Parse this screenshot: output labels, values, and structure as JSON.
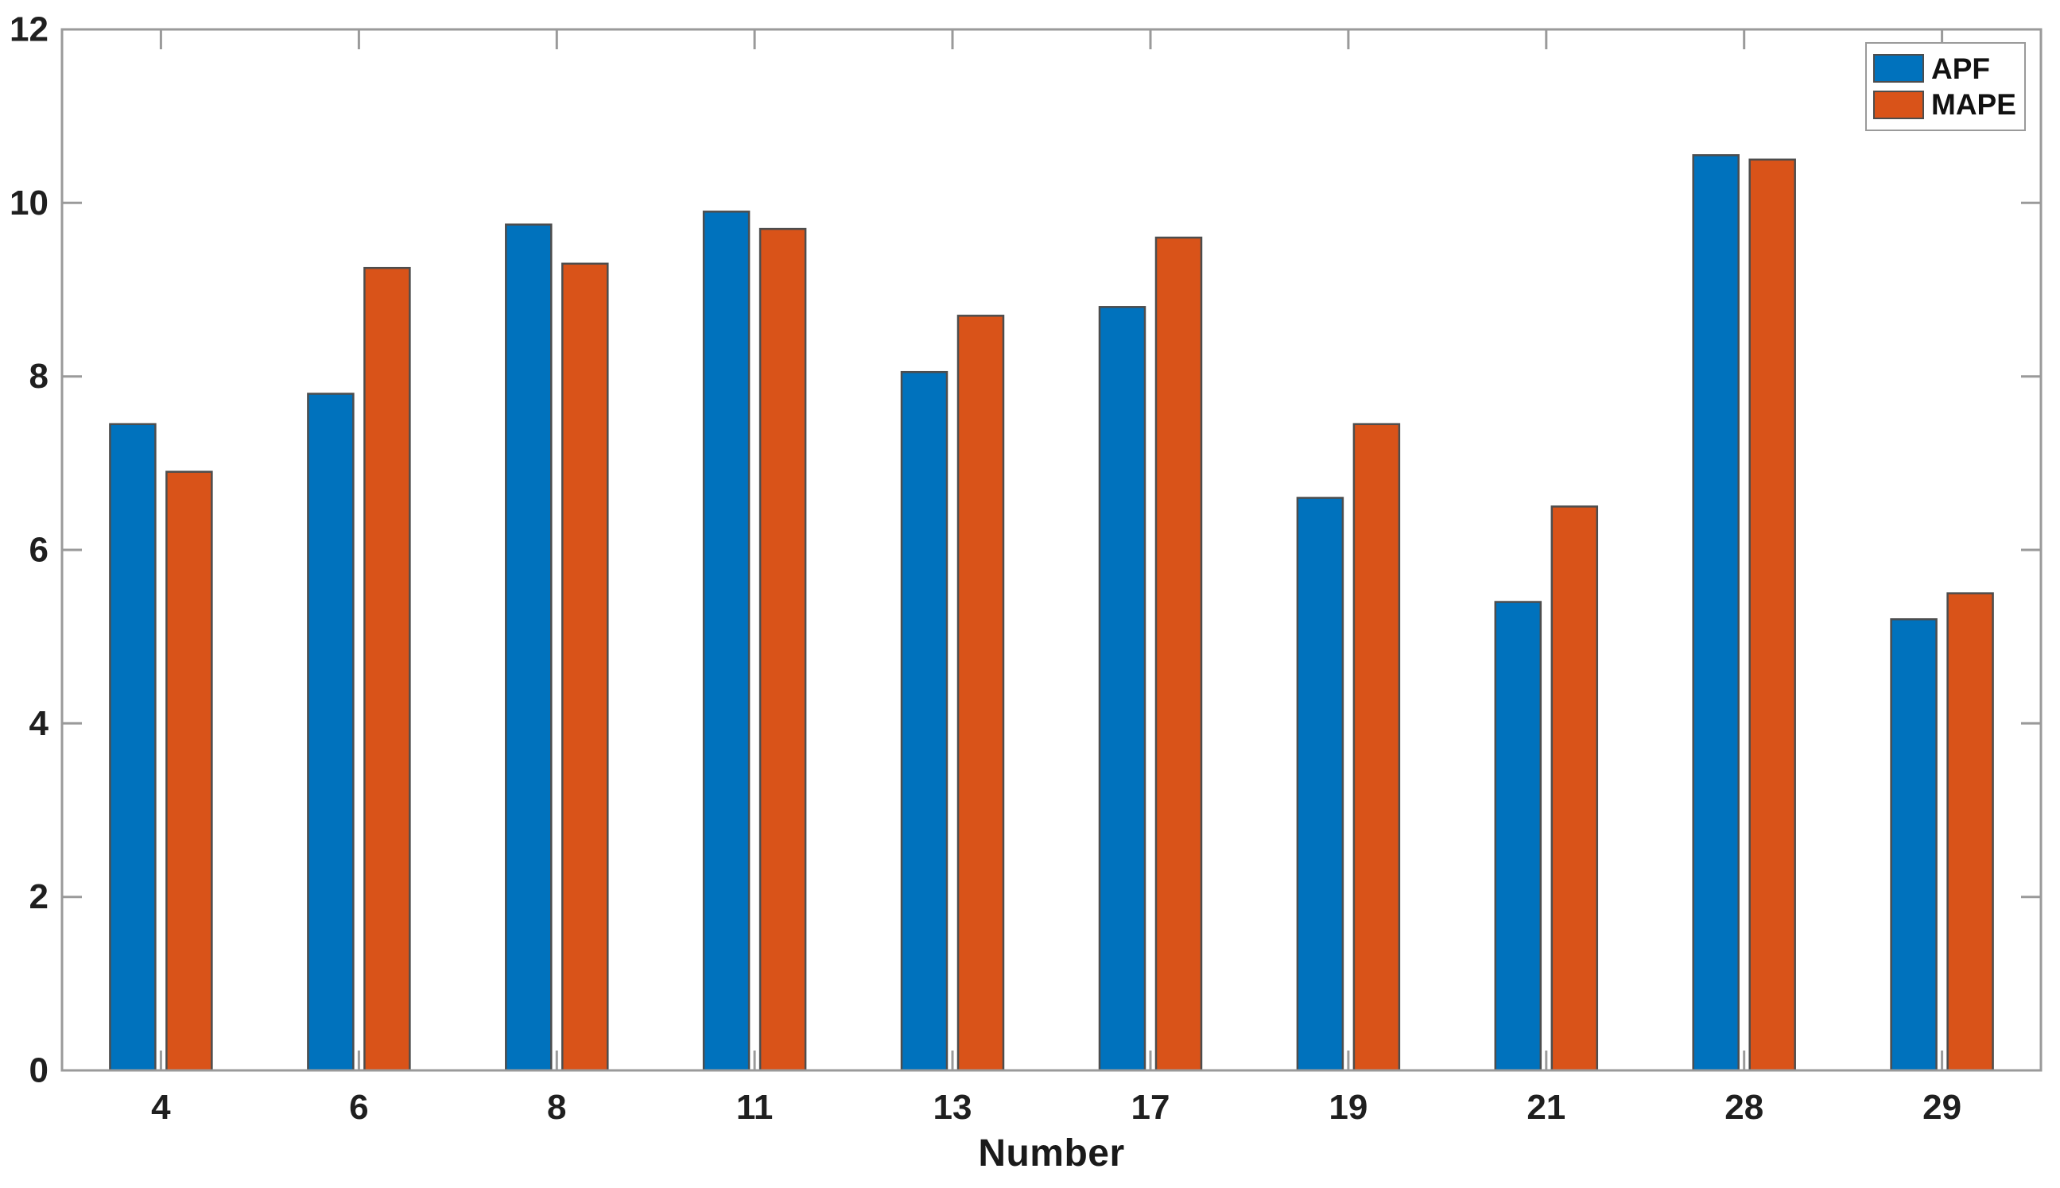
{
  "chart_data": {
    "type": "bar",
    "title": "",
    "xlabel": "Number",
    "ylabel": "",
    "categories": [
      "4",
      "6",
      "8",
      "11",
      "13",
      "17",
      "19",
      "21",
      "28",
      "29"
    ],
    "series": [
      {
        "name": "APF",
        "color": "#0072BD",
        "values": [
          7.45,
          7.8,
          9.75,
          9.9,
          8.05,
          8.8,
          6.6,
          5.4,
          10.55,
          5.2
        ]
      },
      {
        "name": "MAPE",
        "color": "#D95319",
        "values": [
          6.9,
          9.25,
          9.3,
          9.7,
          8.7,
          9.6,
          7.45,
          6.5,
          10.5,
          5.5
        ]
      }
    ],
    "ylim": [
      0,
      12
    ],
    "yticks": [
      0,
      2,
      4,
      6,
      8,
      10,
      12
    ],
    "grid": false,
    "legend_position": "top-right",
    "bar_edge_color": "#4d4d4d",
    "axis_color": "#9a9a9a",
    "tick_label_color": "#1f1f1f",
    "background_color": "#ffffff"
  }
}
